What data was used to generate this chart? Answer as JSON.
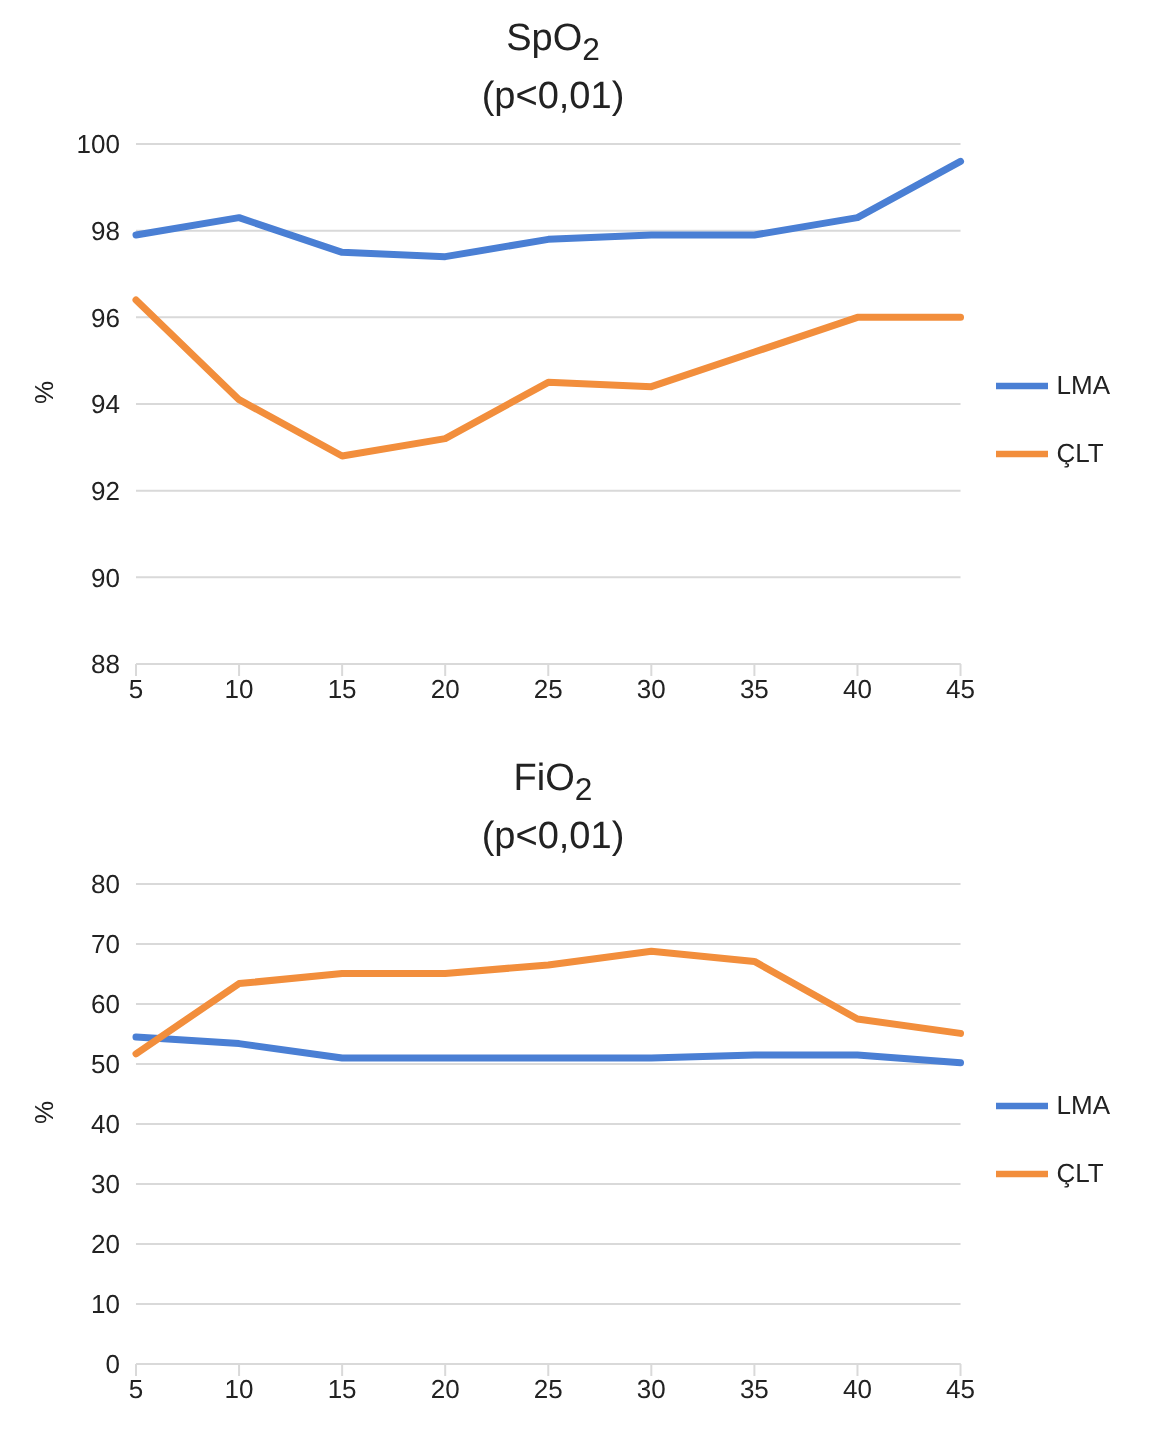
{
  "chart_data": [
    {
      "type": "line",
      "title": "SpO$_{2}$",
      "subtitle": "(p<0,01)",
      "ylabel": "%",
      "categories": [
        "5",
        "10",
        "15",
        "20",
        "25",
        "30",
        "35",
        "40",
        "45"
      ],
      "ylim": [
        88,
        100
      ],
      "yticks": [
        88,
        90,
        92,
        94,
        96,
        98,
        100
      ],
      "grid": "y",
      "legend": "right",
      "marker": "none",
      "line_style": "solid",
      "series": [
        {
          "name": "LMA",
          "color": "#4a7fd4",
          "values": [
            97.9,
            98.3,
            97.5,
            97.4,
            97.8,
            97.9,
            97.9,
            98.3,
            99.6
          ]
        },
        {
          "name": "ÇLT",
          "color": "#f28e3c",
          "values": [
            96.4,
            94.1,
            92.8,
            93.2,
            94.5,
            94.4,
            95.2,
            96,
            96
          ]
        }
      ]
    },
    {
      "type": "line",
      "title": "FiO$_{2}$",
      "subtitle": "(p<0,01)",
      "ylabel": "%",
      "categories": [
        "5",
        "10",
        "15",
        "20",
        "25",
        "30",
        "35",
        "40",
        "45"
      ],
      "ylim": [
        0,
        80
      ],
      "yticks": [
        0,
        10,
        20,
        30,
        40,
        50,
        60,
        70,
        80
      ],
      "grid": "y",
      "legend": "right",
      "marker": "none",
      "line_style": "solid",
      "series": [
        {
          "name": "LMA",
          "color": "#4a7fd4",
          "values": [
            54.5,
            53.4,
            51,
            51,
            51,
            51,
            51.5,
            51.5,
            50.2
          ]
        },
        {
          "name": "ÇLT",
          "color": "#f28e3c",
          "values": [
            51.7,
            63.4,
            65.1,
            65.1,
            66.5,
            68.8,
            67.1,
            57.5,
            55.1
          ]
        }
      ]
    }
  ]
}
